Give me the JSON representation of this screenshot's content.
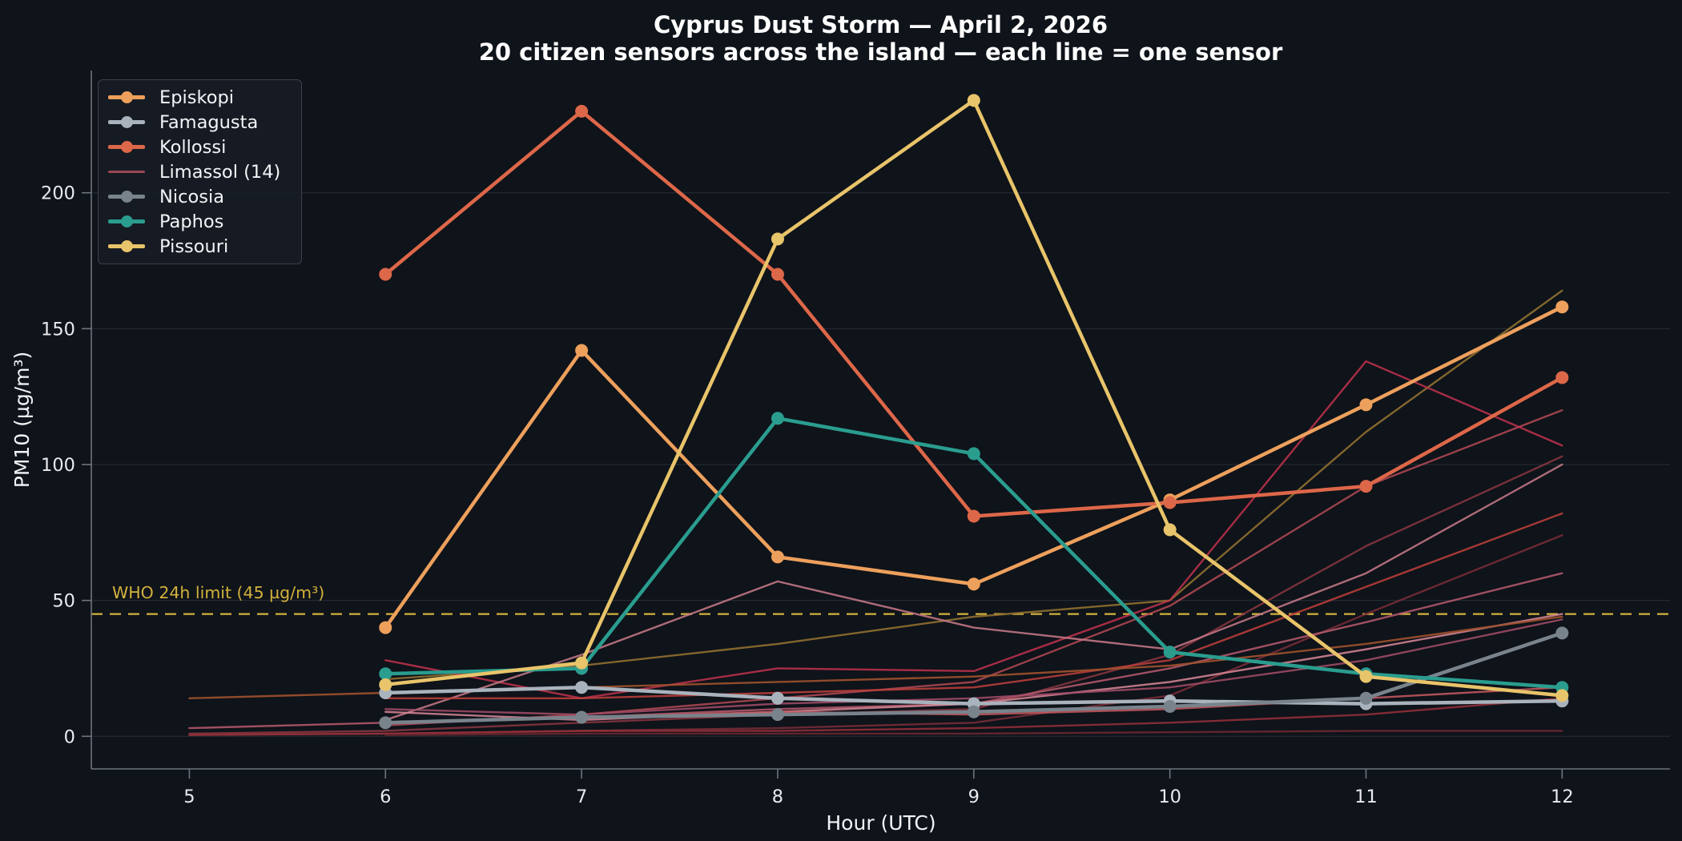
{
  "figure": {
    "title": "Cyprus Dust Storm — April 2, 2026",
    "subtitle": "20 citizen sensors across the island — each line = one sensor",
    "background_color": "#0f131a",
    "text_color": "#ffffff"
  },
  "chart_data": {
    "type": "line",
    "title": "Cyprus Dust Storm — April 2, 2026",
    "subtitle": "20 citizen sensors across the island — each line = one sensor",
    "xlabel": "Hour (UTC)",
    "ylabel": "PM10 (µg/m³)",
    "x": [
      5,
      6,
      7,
      8,
      9,
      10,
      11,
      12
    ],
    "xticks": [
      5,
      6,
      7,
      8,
      9,
      10,
      11,
      12
    ],
    "yticks": [
      0,
      50,
      100,
      150,
      200
    ],
    "xlim": [
      4.5,
      12.55
    ],
    "ylim": [
      -12,
      245
    ],
    "grid": "horizontal-only",
    "legend_position": "upper-left",
    "annotation": {
      "label": "WHO 24h limit (45 µg/m³)",
      "value": 45,
      "color": "#d2b13c",
      "style": "dashed"
    },
    "legend": [
      {
        "label": "Episkopi",
        "color": "#eda05c",
        "marker": true
      },
      {
        "label": "Famagusta",
        "color": "#a9b3bd",
        "marker": true
      },
      {
        "label": "Kollossi",
        "color": "#dd6749",
        "marker": true
      },
      {
        "label": "Limassol (14)",
        "color": "#9d4752",
        "marker": false
      },
      {
        "label": "Nicosia",
        "color": "#79838c",
        "marker": true
      },
      {
        "label": "Paphos",
        "color": "#2a9d8f",
        "marker": true
      },
      {
        "label": "Pissouri",
        "color": "#e8c46a",
        "marker": true
      }
    ],
    "series": [
      {
        "name": "Episkopi",
        "color": "#eda05c",
        "width": 4.5,
        "markers": true,
        "opacity": 1.0,
        "values": [
          null,
          40,
          142,
          66,
          56,
          87,
          122,
          158
        ]
      },
      {
        "name": "Famagusta",
        "color": "#a9b3bd",
        "width": 4.5,
        "markers": true,
        "opacity": 1.0,
        "values": [
          null,
          16,
          18,
          14,
          12,
          13,
          12,
          13
        ]
      },
      {
        "name": "Kollossi",
        "color": "#dd6749",
        "width": 4.5,
        "markers": true,
        "opacity": 1.0,
        "values": [
          null,
          170,
          230,
          170,
          81,
          86,
          92,
          132
        ]
      },
      {
        "name": "Nicosia",
        "color": "#79838c",
        "width": 4.5,
        "markers": true,
        "opacity": 1.0,
        "values": [
          null,
          5,
          7,
          8,
          9,
          11,
          14,
          38
        ]
      },
      {
        "name": "Paphos",
        "color": "#2a9d8f",
        "width": 4.5,
        "markers": true,
        "opacity": 1.0,
        "values": [
          null,
          23,
          25,
          117,
          104,
          31,
          23,
          18
        ]
      },
      {
        "name": "Pissouri",
        "color": "#e8c46a",
        "width": 4.5,
        "markers": true,
        "opacity": 1.0,
        "values": [
          null,
          19,
          27,
          183,
          234,
          76,
          22,
          15
        ]
      },
      {
        "name": "Limassol-01",
        "color": "#8f7030",
        "width": 2.4,
        "markers": false,
        "opacity": 0.9,
        "values": [
          null,
          21,
          26,
          34,
          44,
          50,
          112,
          164
        ]
      },
      {
        "name": "Limassol-02",
        "color": "#b44a55",
        "width": 2.4,
        "markers": false,
        "opacity": 0.85,
        "values": [
          null,
          4,
          8,
          14,
          20,
          48,
          92,
          120
        ]
      },
      {
        "name": "Limassol-03",
        "color": "#c2334d",
        "width": 2.4,
        "markers": false,
        "opacity": 0.85,
        "values": [
          null,
          28,
          14,
          25,
          24,
          50,
          138,
          107
        ]
      },
      {
        "name": "Limassol-04",
        "color": "#8a3742",
        "width": 2.4,
        "markers": false,
        "opacity": 0.85,
        "values": [
          1,
          2,
          5,
          8,
          10,
          30,
          70,
          103
        ]
      },
      {
        "name": "Limassol-05",
        "color": "#c97b8a",
        "width": 2.4,
        "markers": false,
        "opacity": 0.85,
        "values": [
          null,
          6,
          30,
          57,
          40,
          32,
          60,
          100
        ]
      },
      {
        "name": "Limassol-06",
        "color": "#c0413c",
        "width": 2.4,
        "markers": false,
        "opacity": 0.85,
        "values": [
          null,
          14,
          14,
          16,
          18,
          28,
          55,
          82
        ]
      },
      {
        "name": "Limassol-07",
        "color": "#7a2e3a",
        "width": 2.4,
        "markers": false,
        "opacity": 0.85,
        "values": [
          0.5,
          1,
          2,
          3,
          5,
          15,
          45,
          74
        ]
      },
      {
        "name": "Limassol-08",
        "color": "#b85c6e",
        "width": 2.4,
        "markers": false,
        "opacity": 0.85,
        "values": [
          3,
          5,
          7,
          10,
          12,
          25,
          42,
          60
        ]
      },
      {
        "name": "Limassol-09",
        "color": "#d98898",
        "width": 2.4,
        "markers": false,
        "opacity": 0.85,
        "values": [
          null,
          9,
          6,
          9,
          12,
          20,
          32,
          45
        ]
      },
      {
        "name": "Limassol-10",
        "color": "#a34d68",
        "width": 2.4,
        "markers": false,
        "opacity": 0.85,
        "values": [
          null,
          10,
          8,
          12,
          14,
          18,
          28,
          43
        ]
      },
      {
        "name": "Limassol-11",
        "color": "#a0522d",
        "width": 2.4,
        "markers": false,
        "opacity": 0.9,
        "values": [
          14,
          16,
          18,
          20,
          22,
          26,
          34,
          44
        ]
      },
      {
        "name": "Limassol-12",
        "color": "#c95a62",
        "width": 2.4,
        "markers": false,
        "opacity": 0.85,
        "values": [
          null,
          5,
          7,
          9,
          8,
          10,
          14,
          18
        ]
      },
      {
        "name": "Limassol-13",
        "color": "#96303a",
        "width": 2.4,
        "markers": false,
        "opacity": 0.85,
        "values": [
          0.5,
          1,
          2,
          2,
          3,
          5,
          8,
          14
        ]
      },
      {
        "name": "Limassol-14",
        "color": "#6e2833",
        "width": 2.4,
        "markers": false,
        "opacity": 0.85,
        "values": [
          null,
          0.5,
          1,
          1,
          1,
          1.5,
          2,
          2
        ]
      }
    ],
    "axis_style": {
      "spine_color": "#6e757d",
      "grid_color": "#252a33",
      "tick_label_color": "#e8eaec",
      "tick_label_size": 22.5,
      "axis_label_size": 25
    }
  }
}
